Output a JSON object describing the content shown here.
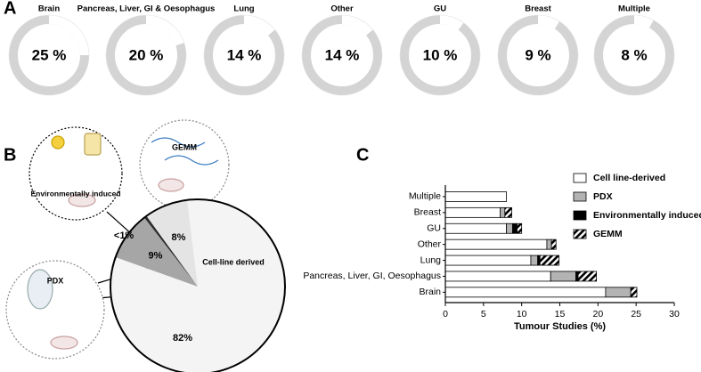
{
  "chart_data": [
    {
      "type": "donut",
      "label": "A",
      "categories": [
        "Brain",
        "Pancreas, Liver, GI & Oesophagus",
        "Lung",
        "Other",
        "GU",
        "Breast",
        "Multiple"
      ],
      "values": [
        25,
        20,
        14,
        14,
        10,
        9,
        8
      ],
      "value_labels": [
        "25 %",
        "20 %",
        "14 %",
        "14 %",
        "10 %",
        "9 %",
        "8 %"
      ],
      "color": "#d4d4d4"
    },
    {
      "type": "pie",
      "label": "B",
      "categories": [
        "Cell-line derived",
        "PDX",
        "Environmentally induced",
        "GEMM"
      ],
      "values": [
        82,
        9,
        0.5,
        8
      ],
      "value_labels": [
        "82%",
        "9%",
        "<1%",
        "8%"
      ],
      "colors": [
        "#f4f4f4",
        "#a6a6a6",
        "#2b2b2b",
        "#e4e4e4"
      ]
    },
    {
      "type": "stacked_barh",
      "label": "C",
      "categories": [
        "Multiple",
        "Breast",
        "GU",
        "Other",
        "Lung",
        "Pancreas, Liver, GI, Oesophagus",
        "Brain"
      ],
      "series": [
        {
          "name": "Cell line-derived",
          "color": "#ffffff",
          "values": [
            8,
            7.2,
            8,
            13.3,
            11.2,
            13.8,
            21
          ]
        },
        {
          "name": "PDX",
          "color": "#b3b3b3",
          "values": [
            0,
            0.6,
            0.8,
            0.6,
            0.9,
            3.3,
            3.3
          ]
        },
        {
          "name": "Environmentally induced",
          "color": "#000000",
          "values": [
            0,
            0,
            0.6,
            0,
            0.3,
            0.3,
            0
          ]
        },
        {
          "name": "GEMM",
          "color": "#000000",
          "hatch": true,
          "values": [
            0,
            0.9,
            0.6,
            0.6,
            2.5,
            2.4,
            0.8
          ]
        }
      ],
      "xlim": [
        0,
        30
      ],
      "xticks": [
        0,
        5,
        10,
        15,
        20,
        25,
        30
      ],
      "xlabel": "Tumour Studies (%)"
    }
  ]
}
